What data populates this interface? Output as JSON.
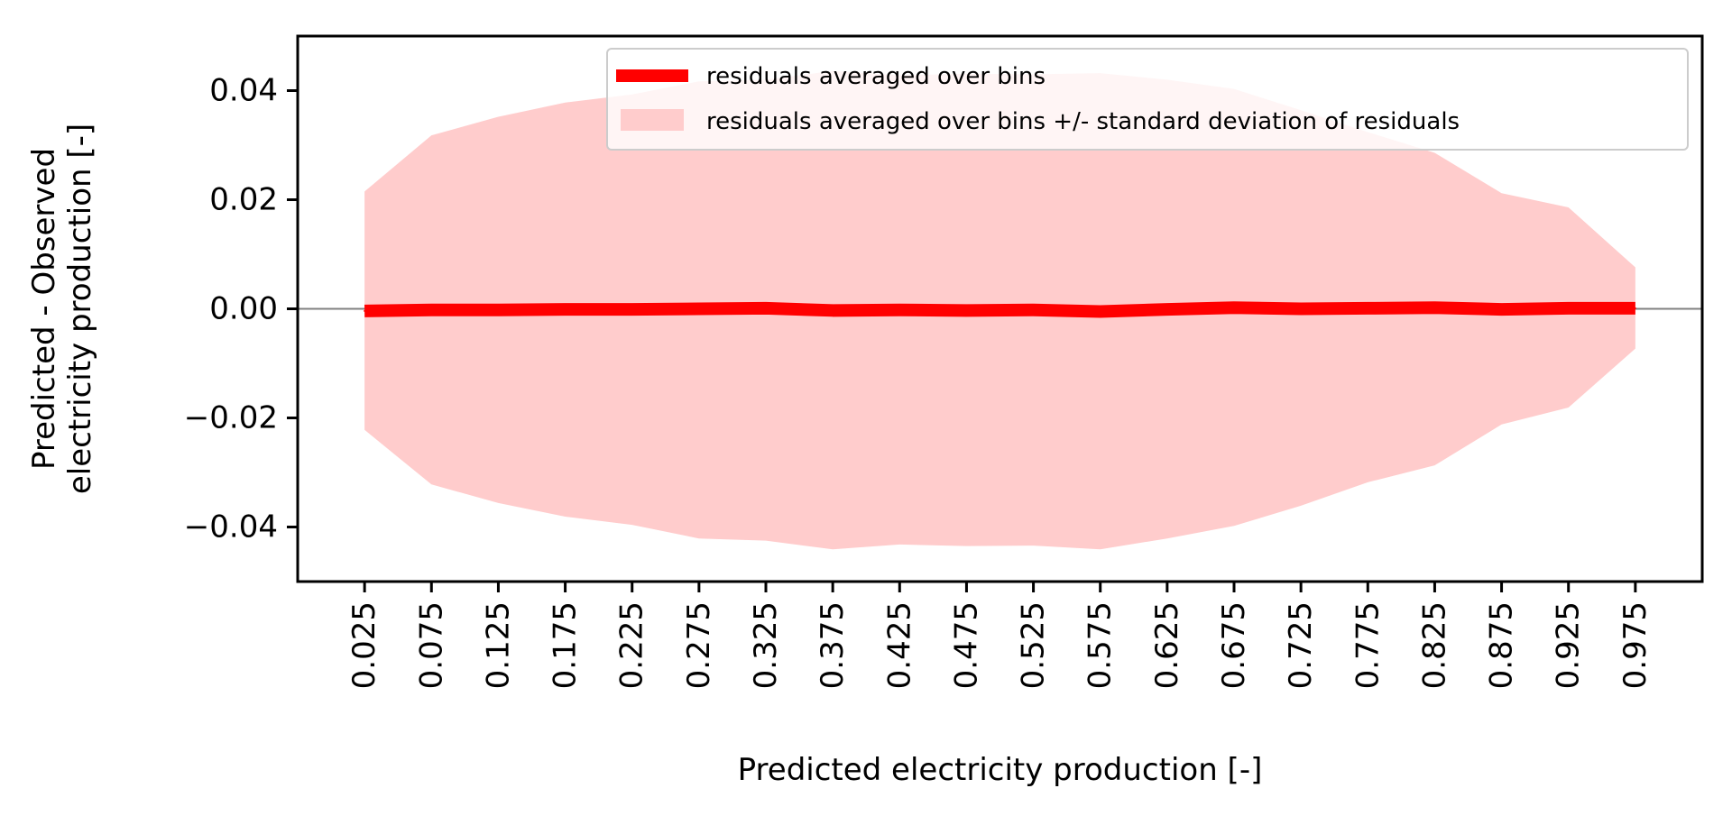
{
  "chart_data": {
    "type": "line",
    "title": "",
    "xlabel": "Predicted electricity production [-]",
    "ylabel_lines": [
      "Predicted - Observed",
      "electricity production [-]"
    ],
    "x_tick_labels": [
      "0.025",
      "0.075",
      "0.125",
      "0.175",
      "0.225",
      "0.275",
      "0.325",
      "0.375",
      "0.425",
      "0.475",
      "0.525",
      "0.575",
      "0.625",
      "0.675",
      "0.725",
      "0.775",
      "0.825",
      "0.875",
      "0.925",
      "0.975"
    ],
    "x": [
      0.025,
      0.075,
      0.125,
      0.175,
      0.225,
      0.275,
      0.325,
      0.375,
      0.425,
      0.475,
      0.525,
      0.575,
      0.625,
      0.675,
      0.725,
      0.775,
      0.825,
      0.875,
      0.925,
      0.975
    ],
    "xlim": [
      -0.025,
      1.025
    ],
    "ylim": [
      -0.05,
      0.05
    ],
    "y_ticks": [
      -0.04,
      -0.02,
      0.0,
      0.02,
      0.04
    ],
    "y_tick_labels": [
      "−0.04",
      "−0.02",
      "0.00",
      "0.02",
      "0.04"
    ],
    "zero_line": true,
    "grid": false,
    "legend_position": "upper center",
    "series": [
      {
        "name": "residuals averaged over bins",
        "kind": "line",
        "color": "#ff0000",
        "values": [
          -0.0004,
          -0.0002,
          -0.0002,
          -0.0001,
          -0.0001,
          0.0,
          0.0001,
          -0.0003,
          -0.0002,
          -0.0003,
          -0.0002,
          -0.0005,
          -0.0001,
          0.0002,
          0.0,
          0.0001,
          0.0002,
          -0.0001,
          0.0001,
          0.0001
        ]
      },
      {
        "name": "residuals averaged over bins +/- standard deviation of residuals",
        "kind": "band",
        "color": "#ffcccc",
        "upper": [
          0.0215,
          0.0318,
          0.0352,
          0.0378,
          0.0393,
          0.0417,
          0.042,
          0.0436,
          0.0428,
          0.0431,
          0.043,
          0.0432,
          0.042,
          0.0403,
          0.0364,
          0.0324,
          0.0286,
          0.0212,
          0.0186,
          0.0076
        ],
        "lower": [
          -0.0222,
          -0.0322,
          -0.0356,
          -0.0381,
          -0.0396,
          -0.0421,
          -0.0425,
          -0.0441,
          -0.0432,
          -0.0435,
          -0.0434,
          -0.0441,
          -0.0421,
          -0.0398,
          -0.0361,
          -0.0318,
          -0.0287,
          -0.0212,
          -0.0181,
          -0.0073
        ]
      }
    ]
  }
}
